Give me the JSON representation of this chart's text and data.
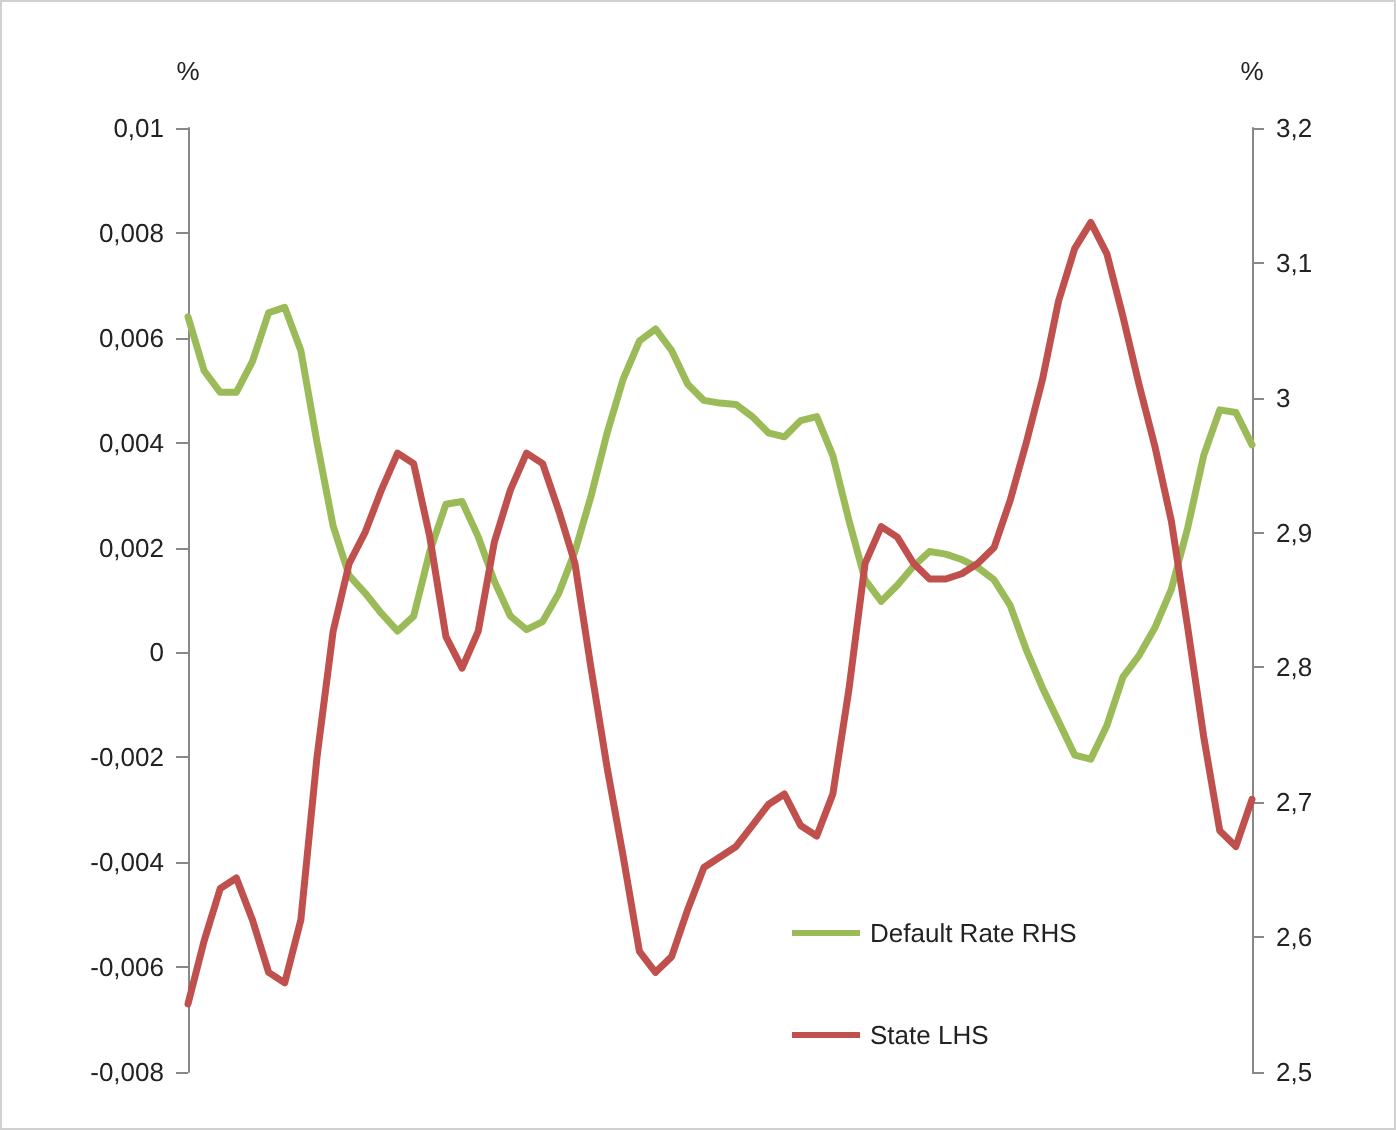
{
  "chart_data": {
    "type": "line",
    "ylabel": "%",
    "y2label": "%",
    "categories": [
      null,
      null,
      null,
      null,
      null,
      null,
      null,
      null,
      null,
      null,
      null,
      null,
      null,
      null,
      null,
      null,
      null,
      null,
      null,
      null,
      null,
      null,
      null,
      null,
      null,
      null,
      null,
      null,
      null,
      null,
      null,
      null,
      null,
      null,
      null,
      null,
      null,
      null,
      null,
      null,
      null,
      null,
      null,
      null,
      null,
      null,
      null,
      null,
      null,
      null,
      null,
      null,
      null,
      null,
      null,
      null,
      null,
      null,
      null,
      null,
      null,
      null,
      null,
      null,
      null,
      null,
      null
    ],
    "series": [
      {
        "name": "Default Rate RHS",
        "color": "#9bbb59",
        "axis": "y2",
        "values": [
          3.06,
          3.02,
          3.004,
          3.004,
          3.027,
          3.063,
          3.067,
          3.035,
          2.967,
          2.905,
          2.868,
          2.855,
          2.84,
          2.827,
          2.838,
          2.886,
          2.921,
          2.923,
          2.897,
          2.864,
          2.838,
          2.828,
          2.834,
          2.855,
          2.886,
          2.927,
          2.974,
          3.014,
          3.042,
          3.051,
          3.035,
          3.01,
          2.998,
          2.996,
          2.995,
          2.986,
          2.974,
          2.971,
          2.983,
          2.986,
          2.957,
          2.909,
          2.865,
          2.849,
          2.861,
          2.875,
          2.886,
          2.884,
          2.88,
          2.874,
          2.865,
          2.846,
          2.813,
          2.785,
          2.76,
          2.735,
          2.732,
          2.757,
          2.793,
          2.809,
          2.83,
          2.858,
          2.903,
          2.957,
          2.991,
          2.989,
          2.965
        ]
      },
      {
        "name": "State LHS",
        "color": "#c0504d",
        "values": [
          -0.0067,
          -0.0055,
          -0.0045,
          -0.0043,
          -0.0051,
          -0.0061,
          -0.0063,
          -0.0051,
          -0.002,
          0.0004,
          0.0017,
          0.0023,
          0.0031,
          0.0038,
          0.0036,
          0.0022,
          0.0003,
          -0.0003,
          0.0004,
          0.0021,
          0.0031,
          0.0038,
          0.0036,
          0.0027,
          0.0017,
          -0.0003,
          -0.0022,
          -0.0039,
          -0.0057,
          -0.0061,
          -0.0058,
          -0.0049,
          -0.0041,
          -0.0039,
          -0.0037,
          -0.0033,
          -0.0029,
          -0.0027,
          -0.0033,
          -0.0035,
          -0.0027,
          -0.0007,
          0.0017,
          0.0024,
          0.0022,
          0.0017,
          0.0014,
          0.0014,
          0.0015,
          0.0017,
          0.002,
          0.0029,
          0.004,
          0.0052,
          0.0067,
          0.0077,
          0.0082,
          0.0076,
          0.0064,
          0.0051,
          0.0039,
          0.0025,
          0.0005,
          -0.0016,
          -0.0034,
          -0.0037,
          -0.0028
        ]
      }
    ],
    "ylim": [
      -0.008,
      0.01
    ],
    "yticks": [
      {
        "value": -0.008,
        "label": "-0,008"
      },
      {
        "value": -0.006,
        "label": "-0,006"
      },
      {
        "value": -0.004,
        "label": "-0,004"
      },
      {
        "value": -0.002,
        "label": "-0,002"
      },
      0,
      {
        "value": 0.002,
        "label": "0,002"
      },
      {
        "value": 0.004,
        "label": "0,004"
      },
      {
        "value": 0.006,
        "label": "0,006"
      },
      {
        "value": 0.008,
        "label": "0,008"
      },
      {
        "value": 0.01,
        "label": "0,01"
      }
    ],
    "y2lim": [
      2.5,
      3.2
    ],
    "y2ticks": [
      {
        "value": 2.5,
        "label": "2,5"
      },
      {
        "value": 2.6,
        "label": "2,6"
      },
      {
        "value": 2.7,
        "label": "2,7"
      },
      {
        "value": 2.8,
        "label": "2,8"
      },
      {
        "value": 2.9,
        "label": "2,9"
      },
      3,
      {
        "value": 3.1,
        "label": "3,1"
      },
      {
        "value": 3.2,
        "label": "3,2"
      }
    ],
    "tick_labels": "y",
    "legend": "bottom right",
    "grid": false,
    "line_style": "solid"
  }
}
